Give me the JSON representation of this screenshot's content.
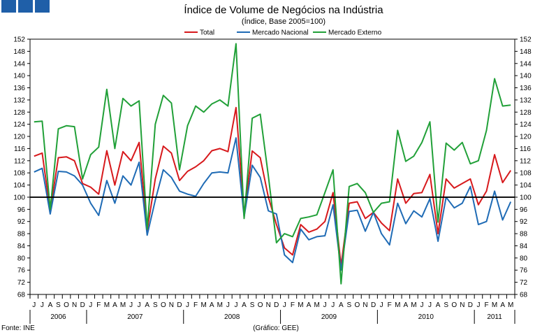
{
  "header": {
    "logo_squares": 3,
    "logo_color": "#1f5fa8"
  },
  "footer": {
    "source": "Fonte: INE",
    "credit": "(Gráfico: GEE)"
  },
  "chart_data": {
    "type": "line",
    "title": "Índice de Volume de Negócios na Indústria",
    "subtitle": "(Índice, Base 2005=100)",
    "xlabel": "",
    "ylabel": "",
    "ylim": [
      68,
      152
    ],
    "yticks": [
      68,
      72,
      76,
      80,
      84,
      88,
      92,
      96,
      100,
      104,
      108,
      112,
      116,
      120,
      124,
      128,
      132,
      136,
      140,
      144,
      148,
      152
    ],
    "reference_line": 100,
    "grid": false,
    "legend_position": "top",
    "month_labels": [
      "J",
      "J",
      "A",
      "S",
      "O",
      "N",
      "D",
      "J",
      "F",
      "M",
      "A",
      "M",
      "J",
      "J",
      "A",
      "S",
      "O",
      "N",
      "D",
      "J",
      "F",
      "M",
      "A",
      "M",
      "J",
      "J",
      "A",
      "S",
      "O",
      "N",
      "D",
      "J",
      "F",
      "M",
      "A",
      "M",
      "J",
      "J",
      "A",
      "S",
      "O",
      "N",
      "D",
      "J",
      "F",
      "M",
      "A",
      "M",
      "J",
      "J",
      "A",
      "S",
      "O",
      "N",
      "D",
      "J",
      "F",
      "M",
      "A",
      "M"
    ],
    "years": [
      {
        "label": "2006",
        "start": 0,
        "count": 7
      },
      {
        "label": "2007",
        "start": 7,
        "count": 12
      },
      {
        "label": "2008",
        "start": 19,
        "count": 12
      },
      {
        "label": "2009",
        "start": 31,
        "count": 12
      },
      {
        "label": "2010",
        "start": 43,
        "count": 12
      },
      {
        "label": "2011",
        "start": 55,
        "count": 5
      }
    ],
    "series": [
      {
        "name": "Total",
        "color": "#d7191c",
        "values": [
          113.5,
          114.5,
          95.5,
          113,
          113.3,
          112,
          104.5,
          103.3,
          101,
          115.3,
          104,
          115,
          112,
          118,
          89,
          106,
          116.8,
          114.5,
          105.5,
          108.5,
          110,
          112,
          115.3,
          116,
          115,
          129.5,
          94.5,
          115.2,
          113,
          100,
          91,
          83.3,
          81,
          91,
          88.5,
          89.5,
          92,
          101.5,
          77.5,
          98,
          98.5,
          93,
          95,
          91.5,
          89,
          106,
          98,
          101.2,
          101.5,
          107.5,
          88,
          106,
          103,
          104.5,
          106,
          97.5,
          102,
          114,
          104.8,
          108.8
        ]
      },
      {
        "name": "Mercado Nacional",
        "color": "#1f6bb5",
        "values": [
          108.3,
          109.5,
          94.5,
          108.5,
          108.3,
          107,
          104,
          98,
          94,
          105.5,
          98,
          107,
          104,
          111.5,
          87.5,
          99,
          109,
          106.5,
          102,
          101,
          100.3,
          104.5,
          108,
          108.3,
          108,
          119.5,
          93.5,
          110.5,
          106.5,
          95.5,
          94.5,
          81,
          78.5,
          89.5,
          86,
          87,
          87.3,
          97.5,
          76,
          95.3,
          95.7,
          88.8,
          95,
          88,
          84.3,
          98,
          91.3,
          95.5,
          93.5,
          99.5,
          85.5,
          100,
          96.5,
          98,
          103.5,
          91,
          92,
          102,
          92.5,
          98.5
        ]
      },
      {
        "name": "Mercado Externo",
        "color": "#21a038",
        "values": [
          124.8,
          125,
          96,
          122.5,
          123.5,
          123.2,
          106,
          114,
          116.5,
          135.5,
          116,
          132.5,
          130,
          131.7,
          89.5,
          124,
          133.5,
          131,
          109,
          123.5,
          130,
          128,
          130.7,
          132,
          130,
          150.5,
          93,
          126,
          127.3,
          107,
          85,
          88,
          87,
          93,
          93.5,
          94.2,
          101.5,
          109,
          71.5,
          103.5,
          104.5,
          101.5,
          95,
          98,
          98.5,
          122,
          111.8,
          113.5,
          118,
          124.8,
          91.8,
          117.8,
          115.5,
          118,
          111,
          112,
          122,
          139,
          130,
          130.3
        ]
      }
    ]
  }
}
